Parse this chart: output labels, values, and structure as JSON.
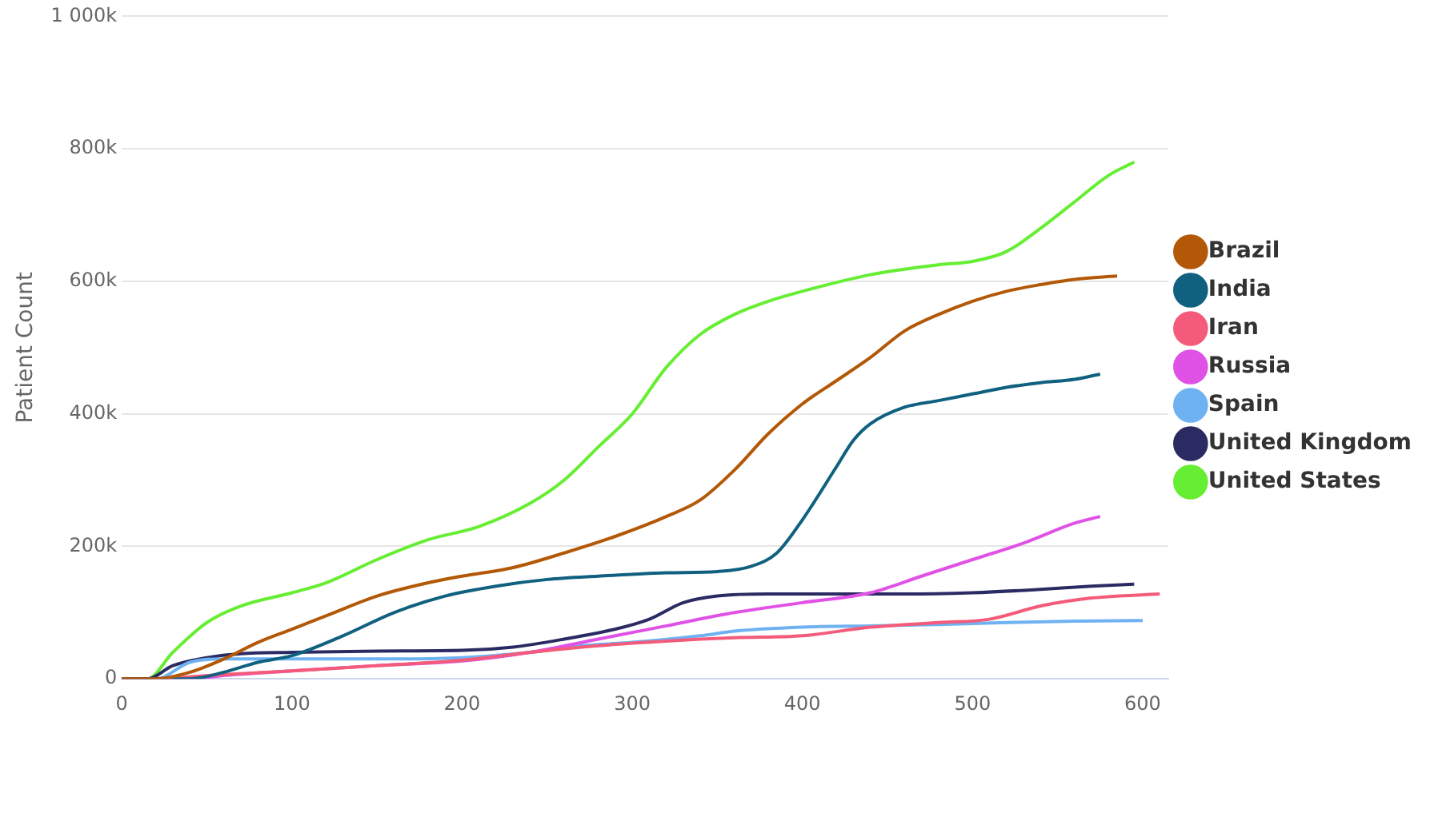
{
  "chart_data": {
    "type": "line",
    "ylabel": "Patient Count",
    "grid": "y",
    "legend": "right",
    "xlim": [
      0,
      615
    ],
    "xticks": [
      0,
      100,
      200,
      300,
      400,
      500,
      600
    ],
    "ylim": [
      0,
      1000000
    ],
    "yticks": [
      0,
      {
        "value": 200000,
        "label": "200k"
      },
      {
        "value": 400000,
        "label": "400k"
      },
      {
        "value": 600000,
        "label": "600k"
      },
      {
        "value": 800000,
        "label": "800k"
      },
      {
        "value": 1000000,
        "label": "1 000k"
      }
    ],
    "series": [
      {
        "name": "Brazil",
        "color": "#b35806",
        "x": [
          0,
          20,
          40,
          60,
          80,
          100,
          120,
          150,
          180,
          200,
          230,
          260,
          290,
          320,
          340,
          360,
          380,
          400,
          420,
          440,
          460,
          480,
          500,
          520,
          540,
          560,
          585
        ],
        "values": [
          0,
          0,
          10000,
          30000,
          55000,
          75000,
          95000,
          125000,
          145000,
          155000,
          168000,
          190000,
          215000,
          245000,
          270000,
          315000,
          370000,
          415000,
          450000,
          485000,
          525000,
          550000,
          570000,
          585000,
          595000,
          603000,
          608000
        ]
      },
      {
        "name": "India",
        "color": "#10607f",
        "x": [
          0,
          40,
          60,
          80,
          100,
          130,
          160,
          190,
          220,
          250,
          280,
          320,
          350,
          370,
          385,
          400,
          420,
          430,
          440,
          460,
          480,
          500,
          520,
          540,
          560,
          575
        ],
        "values": [
          0,
          0,
          10000,
          25000,
          35000,
          65000,
          100000,
          125000,
          140000,
          150000,
          155000,
          160000,
          162000,
          170000,
          190000,
          240000,
          320000,
          360000,
          385000,
          410000,
          420000,
          430000,
          440000,
          447000,
          452000,
          460000
        ]
      },
      {
        "name": "Iran",
        "color": "#f45b7a",
        "x": [
          0,
          20,
          50,
          100,
          150,
          200,
          240,
          280,
          320,
          360,
          400,
          440,
          480,
          510,
          540,
          570,
          610
        ],
        "values": [
          0,
          0,
          5000,
          12000,
          20000,
          28000,
          40000,
          50000,
          57000,
          62000,
          65000,
          78000,
          85000,
          90000,
          110000,
          122000,
          128000
        ]
      },
      {
        "name": "Russia",
        "color": "#e052e6",
        "x": [
          0,
          40,
          60,
          100,
          150,
          200,
          240,
          280,
          320,
          360,
          400,
          440,
          470,
          500,
          530,
          560,
          575
        ],
        "values": [
          0,
          0,
          5000,
          12000,
          20000,
          27000,
          40000,
          60000,
          80000,
          100000,
          115000,
          130000,
          155000,
          180000,
          205000,
          235000,
          245000
        ]
      },
      {
        "name": "Spain",
        "color": "#6fb2f2",
        "x": [
          0,
          20,
          40,
          60,
          100,
          150,
          200,
          240,
          270,
          300,
          340,
          360,
          400,
          440,
          480,
          520,
          560,
          600
        ],
        "values": [
          0,
          0,
          25000,
          30000,
          30000,
          30000,
          32000,
          40000,
          50000,
          55000,
          65000,
          72000,
          78000,
          80000,
          82000,
          85000,
          87000,
          88000
        ]
      },
      {
        "name": "United Kingdom",
        "color": "#2b2b63",
        "x": [
          0,
          15,
          30,
          50,
          70,
          100,
          150,
          200,
          230,
          260,
          290,
          310,
          330,
          350,
          380,
          420,
          460,
          500,
          540,
          570,
          595
        ],
        "values": [
          0,
          0,
          20000,
          32000,
          38000,
          40000,
          42000,
          43000,
          48000,
          60000,
          75000,
          90000,
          115000,
          125000,
          128000,
          128000,
          128000,
          130000,
          135000,
          140000,
          143000
        ]
      },
      {
        "name": "United States",
        "color": "#66ee33",
        "x": [
          0,
          15,
          30,
          50,
          70,
          100,
          120,
          150,
          180,
          210,
          240,
          260,
          280,
          300,
          320,
          340,
          360,
          380,
          400,
          440,
          480,
          500,
          520,
          540,
          560,
          580,
          595
        ],
        "values": [
          0,
          0,
          40000,
          85000,
          110000,
          130000,
          145000,
          180000,
          210000,
          230000,
          265000,
          300000,
          350000,
          400000,
          470000,
          520000,
          550000,
          570000,
          585000,
          610000,
          625000,
          630000,
          645000,
          680000,
          720000,
          760000,
          780000
        ]
      }
    ]
  }
}
